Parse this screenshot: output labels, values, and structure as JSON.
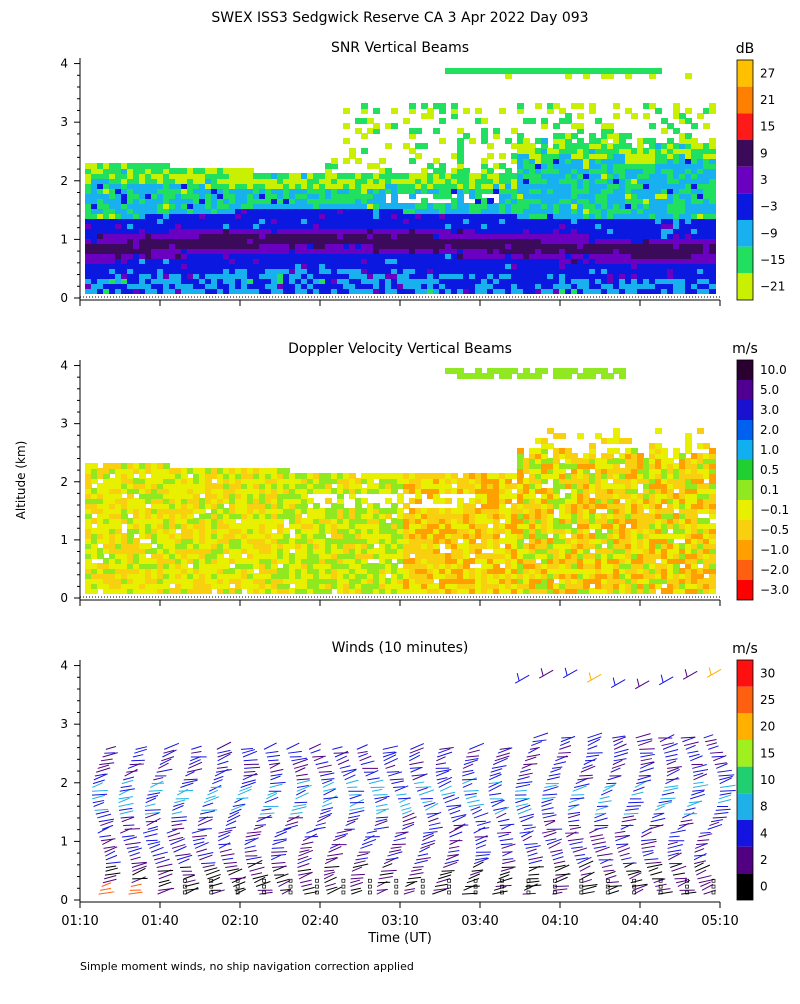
{
  "title": "SWEX ISS3 Sedgwick Reserve CA   3 Apr 2022 Day 093",
  "footnote": "Simple moment winds, no ship navigation correction applied",
  "shared_axes": {
    "ylabel": "Altitude (km)",
    "xlabel": "Time (UT)",
    "yticks": [
      "0",
      "1",
      "2",
      "3",
      "4"
    ],
    "xticks": [
      "01:10",
      "01:40",
      "02:10",
      "02:40",
      "03:10",
      "03:40",
      "04:10",
      "04:40",
      "05:10"
    ]
  },
  "chart_data": [
    {
      "type": "heatmap",
      "title": "SNR Vertical Beams",
      "x_range": [
        "01:10",
        "05:10"
      ],
      "ylim": [
        0,
        4
      ],
      "colorbar": {
        "unit": "dB",
        "labels": [
          "27",
          "21",
          "15",
          "9",
          "3",
          "−3",
          "−9",
          "−15",
          "−21"
        ],
        "colors": [
          "#ffc000",
          "#ff8000",
          "#ff1a1a",
          "#3c0a5a",
          "#6a00c0",
          "#0a18e0",
          "#19b0f0",
          "#21e060",
          "#c8f000"
        ]
      }
    },
    {
      "type": "heatmap",
      "title": "Doppler Velocity Vertical Beams",
      "x_range": [
        "01:10",
        "05:10"
      ],
      "ylim": [
        0,
        4
      ],
      "colorbar": {
        "unit": "m/s",
        "labels": [
          "10.0",
          "5.0",
          "3.0",
          "2.0",
          "1.0",
          "0.5",
          "0.1",
          "−0.1",
          "−0.5",
          "−1.0",
          "−2.0",
          "−3.0"
        ],
        "colors": [
          "#2a0030",
          "#500090",
          "#1a10d0",
          "#0060f0",
          "#10b0f0",
          "#20d030",
          "#90e820",
          "#e8f000",
          "#f8d010",
          "#ffa000",
          "#ff6010",
          "#ff0000"
        ]
      }
    },
    {
      "type": "scatter",
      "title": "Winds (10 minutes)",
      "x_range": [
        "01:10",
        "05:10"
      ],
      "ylim": [
        0,
        4
      ],
      "colorbar": {
        "unit": "m/s",
        "labels": [
          "30",
          "25",
          "20",
          "15",
          "10",
          "8",
          "4",
          "2",
          "0"
        ],
        "colors": [
          "#ff1010",
          "#ff6010",
          "#ffb000",
          "#a0f020",
          "#20d070",
          "#20b0e8",
          "#1414e0",
          "#500080",
          "#000000"
        ]
      }
    }
  ]
}
